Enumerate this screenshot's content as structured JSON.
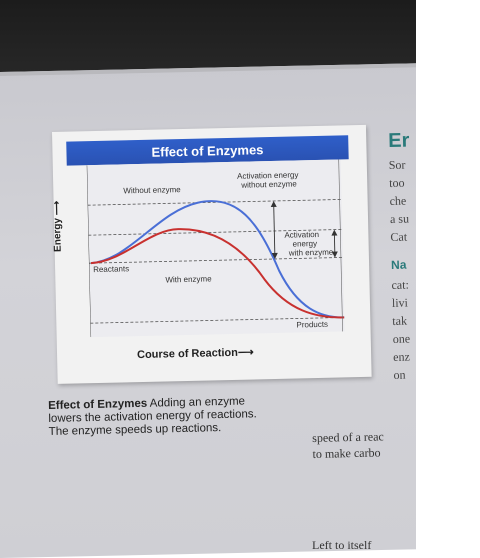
{
  "figure": {
    "title": "Effect of Enzymes",
    "labels": {
      "without_enzyme": "Without enzyme",
      "activation_without_line1": "Activation energy",
      "activation_without_line2": "without enzyme",
      "activation_with_line1": "Activation",
      "activation_with_line2": "energy",
      "activation_with_line3": "with enzyme",
      "reactants": "Reactants",
      "with_enzyme": "With enzyme",
      "products": "Products"
    },
    "y_axis_label": "Energy",
    "x_axis_label": "Course of Reaction",
    "colors": {
      "without_enzyme_curve": "#4a6fd6",
      "with_enzyme_curve": "#c8312f",
      "title_bar": "#2f5fc9"
    }
  },
  "caption": {
    "title": "Effect of Enzymes",
    "text": "Adding an enzyme lowers the activation energy of reactions. The enzyme speeds up reactions."
  },
  "right_column": {
    "heading": "Er",
    "lines": [
      "Sor",
      "too",
      "che",
      "a su",
      "Cat"
    ],
    "subheading": "Na",
    "lines2": [
      "cat:",
      "livi",
      "tak",
      "one",
      "enz",
      "on"
    ]
  },
  "bottom": {
    "line1": "speed of a reac",
    "line2": "to make carbo",
    "line3": "Left to itself"
  }
}
